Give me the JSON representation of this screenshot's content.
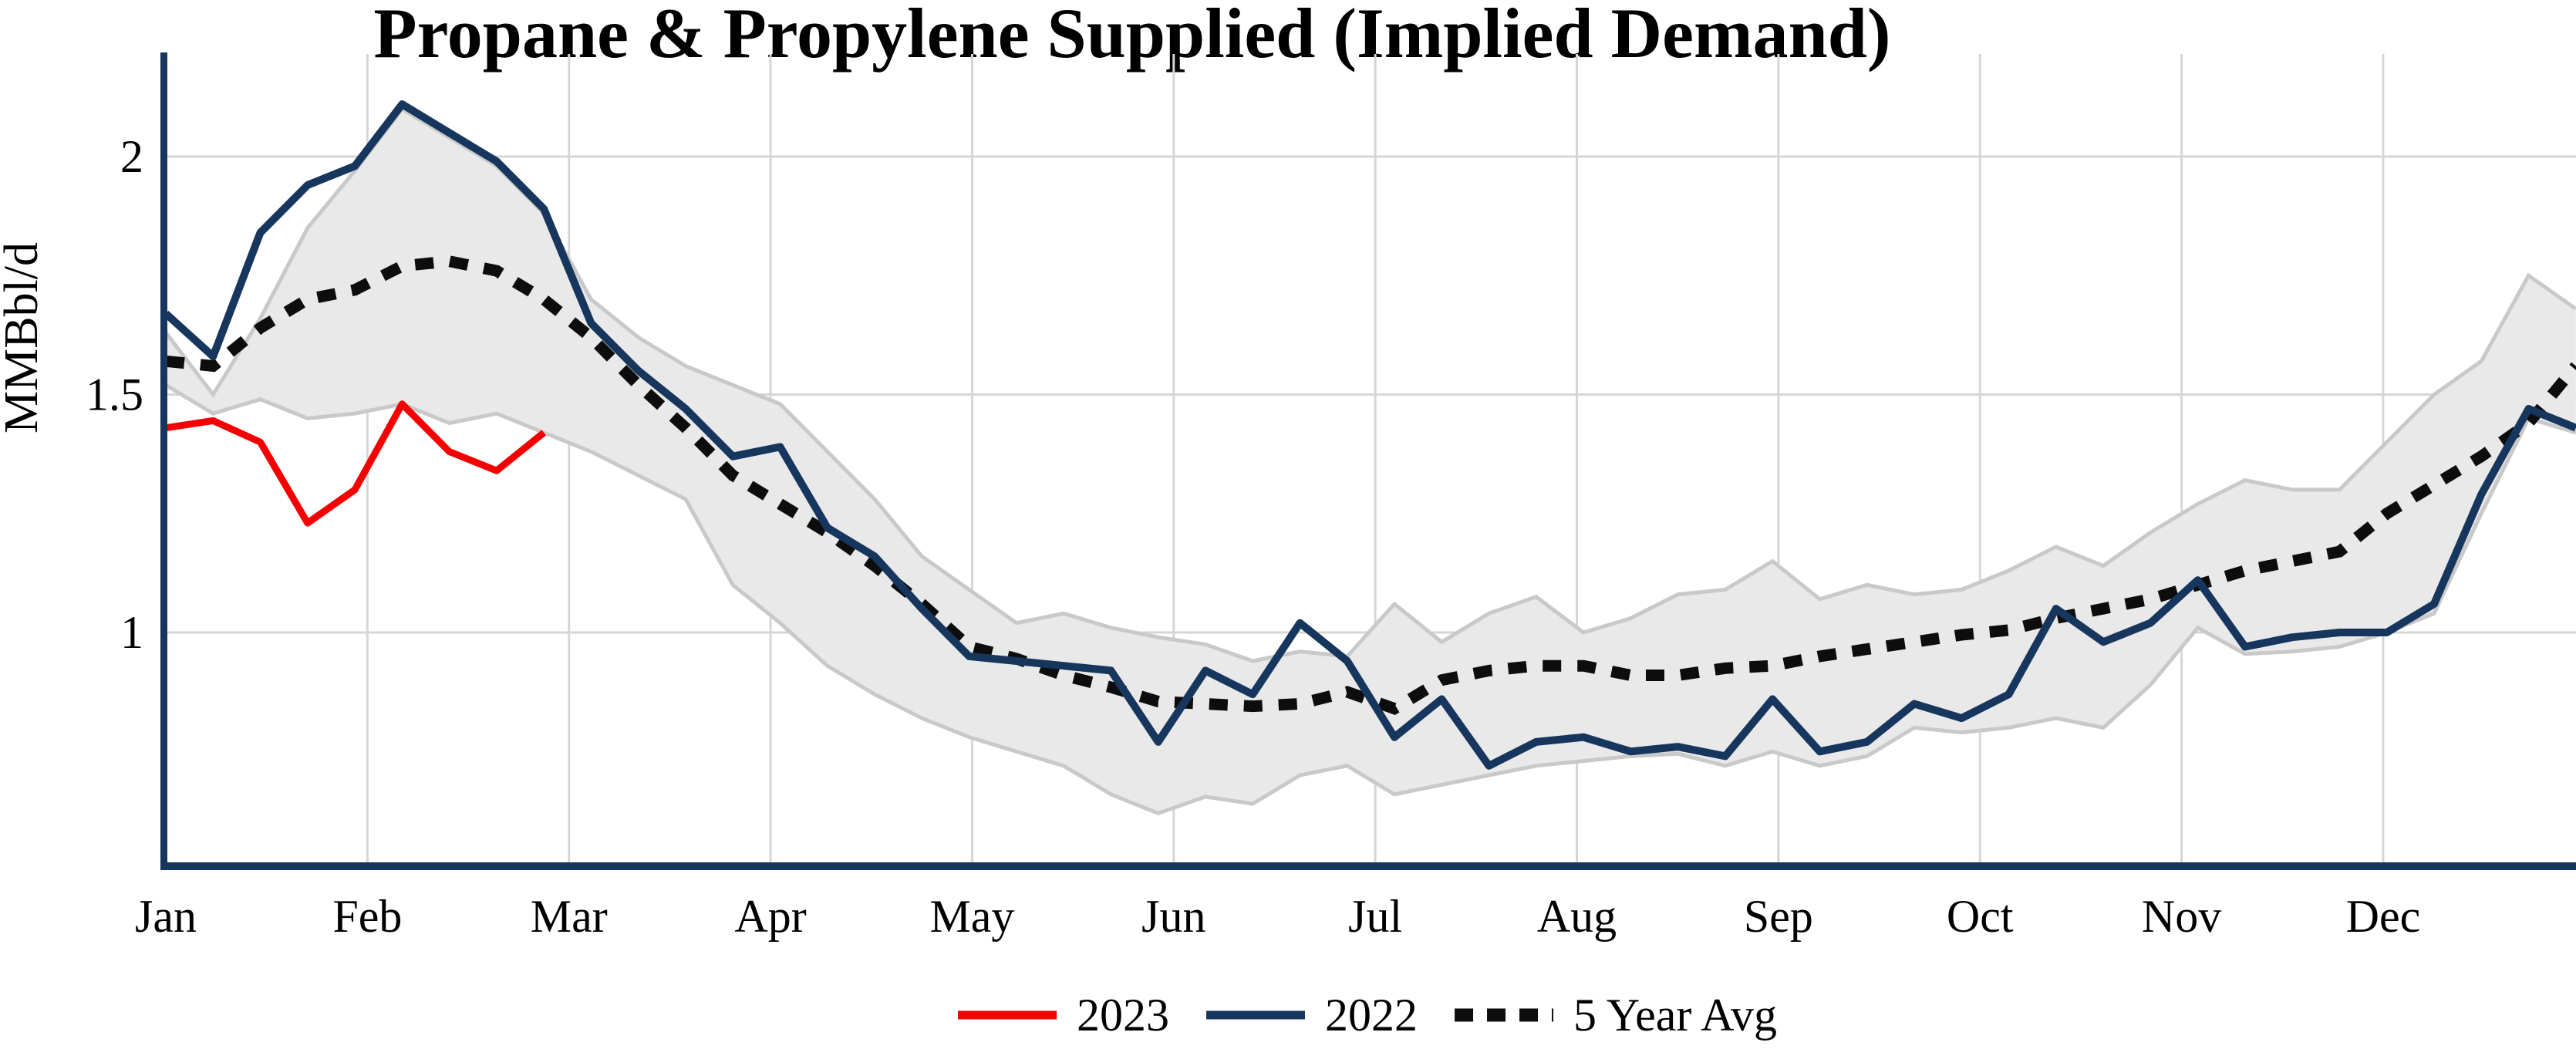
{
  "title": "Propane & Propylene Supplied (Implied Demand)",
  "legend": {
    "items": [
      {
        "label": "2023",
        "color": "#f40000",
        "style": "solid"
      },
      {
        "label": "2022",
        "color": "#17365d",
        "style": "solid"
      },
      {
        "label": "5 Year Avg",
        "color": "#0d0d0d",
        "style": "dotted"
      }
    ]
  },
  "chart_data": {
    "type": "line",
    "title": "Propane & Propylene Supplied (Implied Demand)",
    "xlabel": "",
    "ylabel": "MMBbl/d",
    "ylim": [
      0.5,
      2.2
    ],
    "yticks": [
      2,
      1.5,
      1
    ],
    "grid": true,
    "legend_position": "bottom",
    "x_unit": "week_of_year",
    "weeks": 52,
    "x_months": [
      "Jan",
      "Feb",
      "Mar",
      "Apr",
      "May",
      "Jun",
      "Jul",
      "Aug",
      "Sep",
      "Oct",
      "Nov",
      "Dec"
    ],
    "series": [
      {
        "name": "2023",
        "color": "#f40000",
        "style": "solid",
        "start_week": 1,
        "values": [
          1.43,
          1.445,
          1.4,
          1.23,
          1.3,
          1.48,
          1.38,
          1.34,
          1.42
        ]
      },
      {
        "name": "2022",
        "color": "#17365d",
        "style": "solid",
        "start_week": 1,
        "values": [
          1.67,
          1.58,
          1.84,
          1.94,
          1.98,
          2.11,
          2.05,
          1.99,
          1.89,
          1.65,
          1.55,
          1.47,
          1.37,
          1.39,
          1.22,
          1.16,
          1.05,
          0.95,
          0.94,
          0.93,
          0.92,
          0.77,
          0.92,
          0.87,
          1.02,
          0.94,
          0.78,
          0.86,
          0.72,
          0.77,
          0.78,
          0.75,
          0.76,
          0.74,
          0.86,
          0.75,
          0.77,
          0.85,
          0.82,
          0.87,
          1.05,
          0.98,
          1.02,
          1.11,
          0.97,
          0.99,
          1.0,
          1.0,
          1.06,
          1.29,
          1.47,
          1.43
        ]
      },
      {
        "name": "5 Year Avg",
        "color": "#0d0d0d",
        "style": "dotted",
        "start_week": 1,
        "values": [
          1.57,
          1.56,
          1.64,
          1.7,
          1.72,
          1.77,
          1.78,
          1.76,
          1.7,
          1.62,
          1.52,
          1.43,
          1.33,
          1.27,
          1.21,
          1.14,
          1.06,
          0.97,
          0.945,
          0.91,
          0.885,
          0.855,
          0.85,
          0.845,
          0.85,
          0.875,
          0.84,
          0.9,
          0.92,
          0.93,
          0.93,
          0.91,
          0.91,
          0.925,
          0.93,
          0.95,
          0.965,
          0.98,
          0.995,
          1.005,
          1.03,
          1.05,
          1.07,
          1.1,
          1.13,
          1.15,
          1.17,
          1.25,
          1.31,
          1.37,
          1.44,
          1.56
        ]
      }
    ],
    "band": {
      "name": "5-year range",
      "fill": "#e9e9e9",
      "edge": "#c9c9c9",
      "upper": [
        1.63,
        1.5,
        1.66,
        1.85,
        1.97,
        2.1,
        2.04,
        1.98,
        1.88,
        1.7,
        1.62,
        1.56,
        1.52,
        1.48,
        1.38,
        1.28,
        1.16,
        1.09,
        1.02,
        1.04,
        1.01,
        0.99,
        0.975,
        0.94,
        0.96,
        0.95,
        1.06,
        0.98,
        1.04,
        1.075,
        1.0,
        1.03,
        1.08,
        1.09,
        1.15,
        1.07,
        1.1,
        1.08,
        1.09,
        1.13,
        1.18,
        1.14,
        1.21,
        1.27,
        1.32,
        1.3,
        1.3,
        1.4,
        1.5,
        1.57,
        1.75,
        1.68
      ],
      "lower": [
        1.52,
        1.46,
        1.49,
        1.45,
        1.46,
        1.48,
        1.44,
        1.46,
        1.42,
        1.38,
        1.33,
        1.28,
        1.1,
        1.02,
        0.93,
        0.87,
        0.82,
        0.78,
        0.75,
        0.72,
        0.66,
        0.62,
        0.655,
        0.64,
        0.7,
        0.72,
        0.66,
        0.68,
        0.7,
        0.72,
        0.73,
        0.74,
        0.745,
        0.72,
        0.75,
        0.72,
        0.74,
        0.8,
        0.79,
        0.8,
        0.82,
        0.8,
        0.89,
        1.01,
        0.955,
        0.96,
        0.97,
        1.0,
        1.04,
        1.25,
        1.45,
        1.42
      ]
    },
    "colors": {
      "axis": "#17365d",
      "gridline": "#d6d6d6",
      "band_fill": "#e9e9e9",
      "band_edge": "#c9c9c9",
      "series_2023": "#f40000",
      "series_2022": "#17365d",
      "series_avg": "#0d0d0d"
    }
  }
}
